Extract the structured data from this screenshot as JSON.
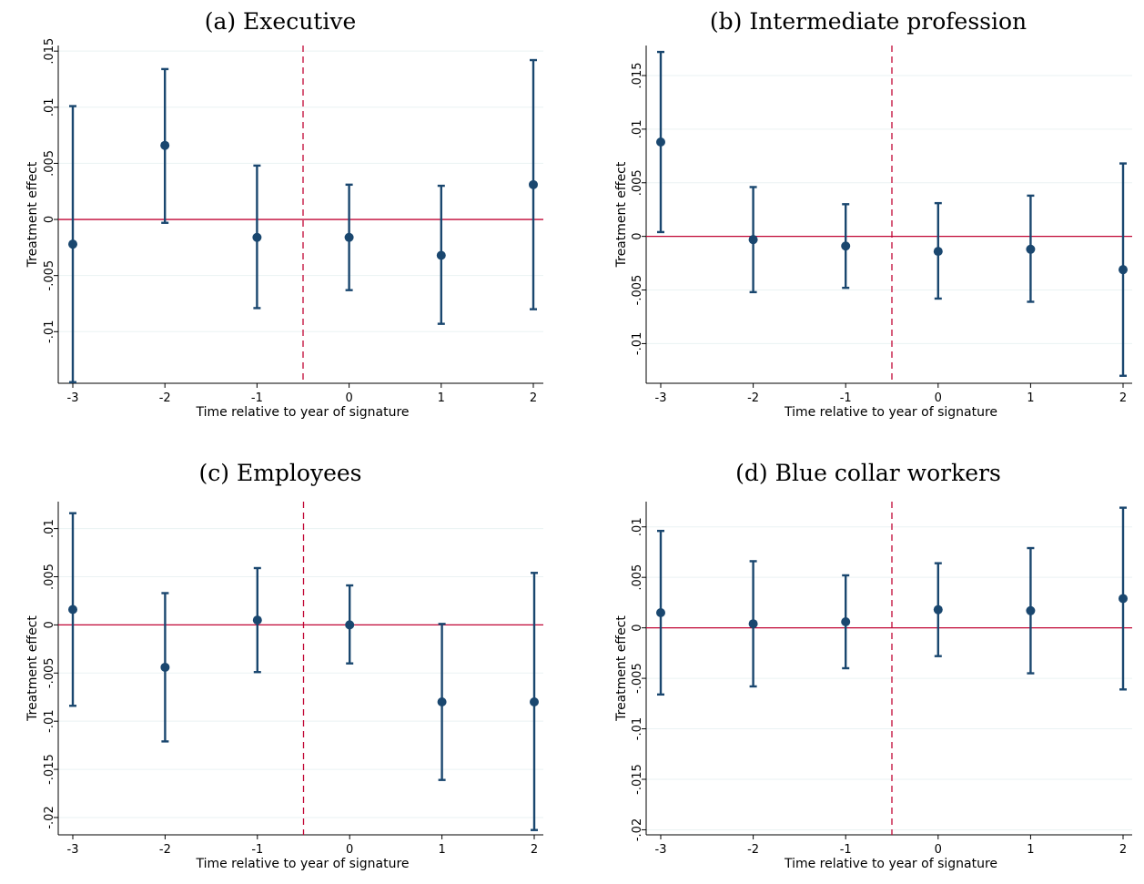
{
  "colors": {
    "marker": "#1a476f",
    "zero_line": "#c10534",
    "cutoff_line": "#c10534",
    "grid": "#eaf2f3",
    "axis": "#000000"
  },
  "chart_data": [
    {
      "type": "scatter",
      "title": "(a) Executive",
      "xlabel": "Time relative to year of signature",
      "ylabel": "Treatment effect",
      "x": [
        -3,
        -2,
        -1,
        0,
        1,
        2
      ],
      "estimate": [
        -0.0022,
        0.0066,
        -0.0016,
        -0.0016,
        -0.0032,
        0.0031
      ],
      "ci_low": [
        -0.0145,
        -0.0003,
        -0.0079,
        -0.0063,
        -0.0093,
        -0.008
      ],
      "ci_high": [
        0.0101,
        0.0134,
        0.0048,
        0.0031,
        0.003,
        0.0142
      ],
      "xlim": [
        -3,
        2
      ],
      "ylim": [
        -0.0146,
        0.0155
      ],
      "yticks": [
        0.015,
        0.01,
        0.005,
        0,
        -0.005,
        -0.01
      ],
      "ytick_labels": [
        ".015",
        ".01",
        ".005",
        "0",
        "-.005",
        "-.01"
      ],
      "xticks": [
        -3,
        -2,
        -1,
        0,
        1,
        2
      ],
      "xtick_labels": [
        "-3",
        "-2",
        "-1",
        "0",
        "1",
        "2"
      ],
      "reference_x": -0.5,
      "reference_y": 0,
      "grid": true,
      "legend": "none"
    },
    {
      "type": "scatter",
      "title": "(b) Intermediate profession",
      "xlabel": "Time relative to year of signature",
      "ylabel": "Treatment effect",
      "x": [
        -3,
        -2,
        -1,
        0,
        1,
        2
      ],
      "estimate": [
        0.0088,
        -0.0003,
        -0.0009,
        -0.0014,
        -0.0012,
        -0.0031
      ],
      "ci_low": [
        0.0004,
        -0.0052,
        -0.0048,
        -0.0058,
        -0.0061,
        -0.013
      ],
      "ci_high": [
        0.0172,
        0.0046,
        0.003,
        0.0031,
        0.0038,
        0.0068
      ],
      "xlim": [
        -3,
        2
      ],
      "ylim": [
        -0.0137,
        0.0178
      ],
      "yticks": [
        0.015,
        0.01,
        0.005,
        0,
        -0.005,
        -0.01
      ],
      "ytick_labels": [
        ".015",
        ".01",
        ".005",
        "0",
        "-.005",
        "-.01"
      ],
      "xticks": [
        -3,
        -2,
        -1,
        0,
        1,
        2
      ],
      "xtick_labels": [
        "-3",
        "-2",
        "-1",
        "0",
        "1",
        "2"
      ],
      "reference_x": -0.5,
      "reference_y": 0,
      "grid": true,
      "legend": "none"
    },
    {
      "type": "scatter",
      "title": "(c) Employees",
      "xlabel": "Time relative to year of signature",
      "ylabel": "Treatment effect",
      "x": [
        -3,
        -2,
        -1,
        0,
        1,
        2
      ],
      "estimate": [
        0.0016,
        -0.0044,
        0.0005,
        0.0,
        -0.008,
        -0.008
      ],
      "ci_low": [
        -0.0084,
        -0.0121,
        -0.0049,
        -0.004,
        -0.0161,
        -0.0213
      ],
      "ci_high": [
        0.0116,
        0.0033,
        0.0059,
        0.0041,
        0.0001,
        0.0054
      ],
      "xlim": [
        -3,
        2
      ],
      "ylim": [
        -0.0218,
        0.0128
      ],
      "yticks": [
        0.01,
        0.005,
        0,
        -0.005,
        -0.01,
        -0.015,
        -0.02
      ],
      "ytick_labels": [
        ".01",
        ".005",
        "0",
        "-.005",
        "-.01",
        "-.015",
        "-.02"
      ],
      "xticks": [
        -3,
        -2,
        -1,
        0,
        1,
        2
      ],
      "xtick_labels": [
        "-3",
        "-2",
        "-1",
        "0",
        "1",
        "2"
      ],
      "reference_x": -0.5,
      "reference_y": 0,
      "grid": true,
      "legend": "none"
    },
    {
      "type": "scatter",
      "title": "(d) Blue collar workers",
      "xlabel": "Time relative to year of signature",
      "ylabel": "Treatment effect",
      "x": [
        -3,
        -2,
        -1,
        0,
        1,
        2
      ],
      "estimate": [
        0.0015,
        0.0004,
        0.0006,
        0.0018,
        0.0017,
        0.0029
      ],
      "ci_low": [
        -0.0066,
        -0.0058,
        -0.004,
        -0.0028,
        -0.0045,
        -0.0061
      ],
      "ci_high": [
        0.0096,
        0.0066,
        0.0052,
        0.0064,
        0.0079,
        0.0119
      ],
      "xlim": [
        -3,
        2
      ],
      "ylim": [
        -0.0205,
        0.0125
      ],
      "yticks": [
        0.01,
        0.005,
        0,
        -0.005,
        -0.01,
        -0.015,
        -0.02
      ],
      "ytick_labels": [
        ".01",
        ".005",
        "0",
        "-.005",
        "-.01",
        "-.015",
        "-.02"
      ],
      "xticks": [
        -3,
        -2,
        -1,
        0,
        1,
        2
      ],
      "xtick_labels": [
        "-3",
        "-2",
        "-1",
        "0",
        "1",
        "2"
      ],
      "reference_x": -0.5,
      "reference_y": 0,
      "grid": true,
      "legend": "none"
    }
  ]
}
